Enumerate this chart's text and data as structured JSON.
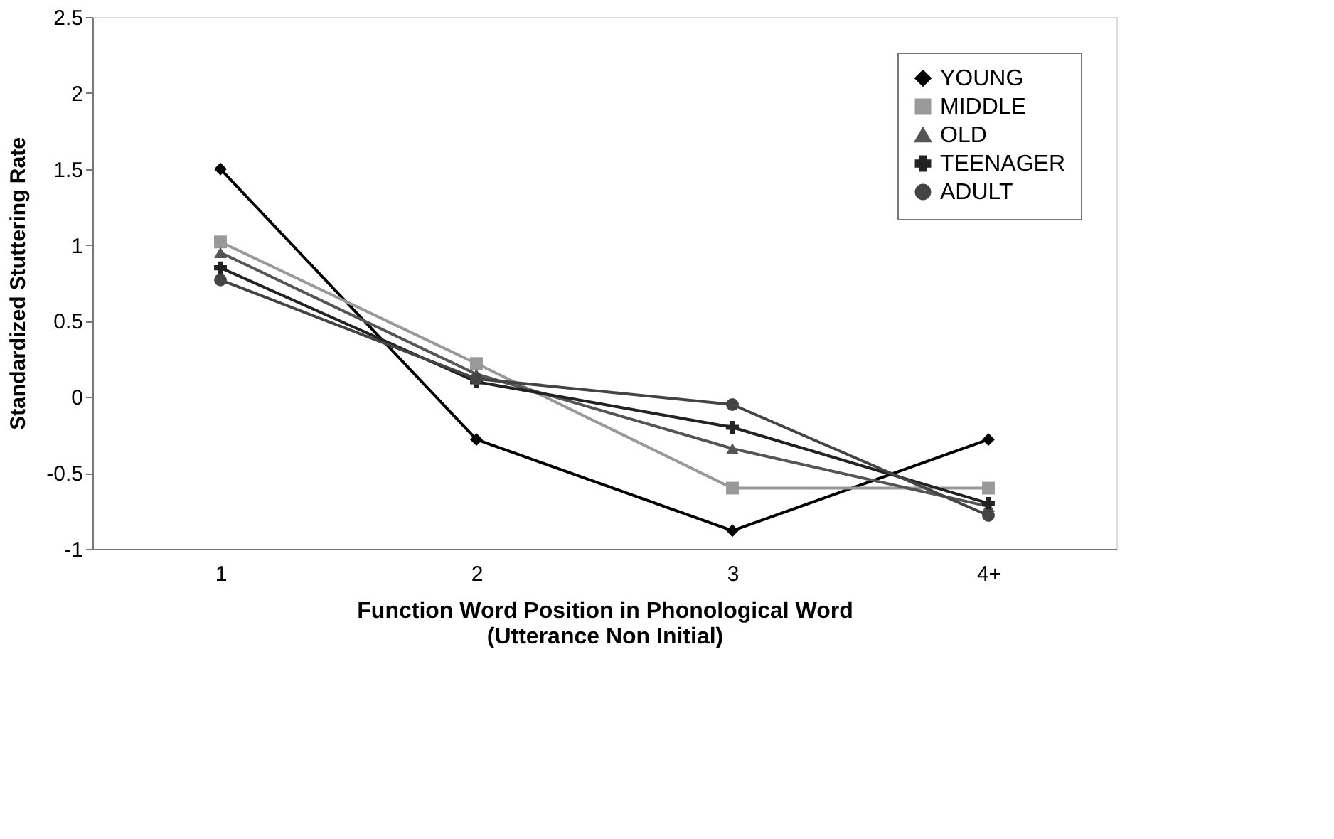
{
  "chart_data": {
    "type": "line",
    "xlabel": "Function Word Position in Phonological Word\n(Utterance Non Initial)",
    "ylabel": "Standardized Stuttering Rate",
    "categories": [
      "1",
      "2",
      "3",
      "4+"
    ],
    "series": [
      {
        "name": "YOUNG",
        "color": "#000000",
        "marker": "diamond",
        "values": [
          1.5,
          -0.28,
          -0.88,
          -0.28
        ]
      },
      {
        "name": "MIDDLE",
        "color": "#999999",
        "marker": "square",
        "values": [
          1.02,
          0.22,
          -0.6,
          -0.6
        ]
      },
      {
        "name": "OLD",
        "color": "#555555",
        "marker": "triangle",
        "values": [
          0.95,
          0.15,
          -0.34,
          -0.72
        ]
      },
      {
        "name": "TEENAGER",
        "color": "#222222",
        "marker": "cross",
        "values": [
          0.85,
          0.1,
          -0.2,
          -0.7
        ]
      },
      {
        "name": "ADULT",
        "color": "#444444",
        "marker": "circle",
        "values": [
          0.77,
          0.12,
          -0.05,
          -0.78
        ]
      }
    ],
    "ylim": [
      -1,
      2.5
    ],
    "yticks": [
      -1,
      -0.5,
      0,
      0.5,
      1,
      1.5,
      2,
      2.5
    ],
    "grid": false,
    "legend": "top right",
    "line_style": "solid"
  }
}
